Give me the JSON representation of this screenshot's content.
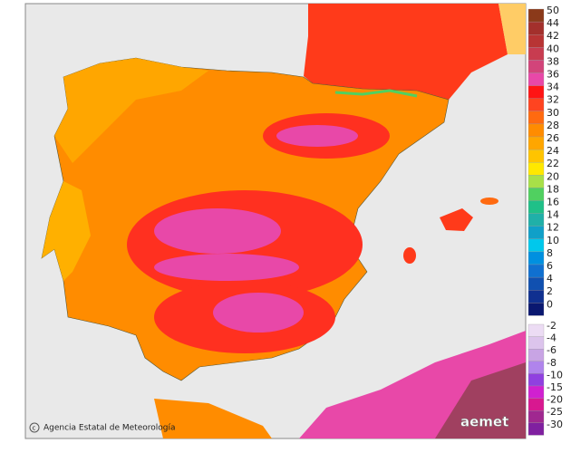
{
  "legend": {
    "entries": [
      {
        "value": 50,
        "color": "#8b3a1a"
      },
      {
        "value": 44,
        "color": "#a3302c"
      },
      {
        "value": 42,
        "color": "#b83434"
      },
      {
        "value": 40,
        "color": "#c83c50"
      },
      {
        "value": 38,
        "color": "#d2447a"
      },
      {
        "value": 36,
        "color": "#e848a8"
      },
      {
        "value": 34,
        "color": "#ff1414"
      },
      {
        "value": 32,
        "color": "#ff4420"
      },
      {
        "value": 30,
        "color": "#ff6a10"
      },
      {
        "value": 28,
        "color": "#ff8c00"
      },
      {
        "value": 26,
        "color": "#ffa600"
      },
      {
        "value": 24,
        "color": "#ffc400"
      },
      {
        "value": 22,
        "color": "#ffe800"
      },
      {
        "value": 20,
        "color": "#a8e048"
      },
      {
        "value": 18,
        "color": "#50d060"
      },
      {
        "value": 16,
        "color": "#20c088"
      },
      {
        "value": 14,
        "color": "#20b0a8"
      },
      {
        "value": 12,
        "color": "#10a0c8"
      },
      {
        "value": 10,
        "color": "#00c8ec"
      },
      {
        "value": 8,
        "color": "#0090e0"
      },
      {
        "value": 6,
        "color": "#1070d0"
      },
      {
        "value": 4,
        "color": "#1050b0"
      },
      {
        "value": 2,
        "color": "#103090"
      },
      {
        "value": 0,
        "color": "#0a1870"
      },
      {
        "value": -2,
        "color": "#ecdcf4"
      },
      {
        "value": -4,
        "color": "#dcc4ec"
      },
      {
        "value": -6,
        "color": "#c8a4e4"
      },
      {
        "value": -8,
        "color": "#b084ec"
      },
      {
        "value": -10,
        "color": "#9040e0"
      },
      {
        "value": -15,
        "color": "#d020d0"
      },
      {
        "value": -20,
        "color": "#d81890"
      },
      {
        "value": -25,
        "color": "#a02890"
      },
      {
        "value": -30,
        "color": "#8020a0"
      }
    ]
  },
  "footer": {
    "credit": "Agencia Estatal de Meteorología",
    "logo": "aemet"
  }
}
